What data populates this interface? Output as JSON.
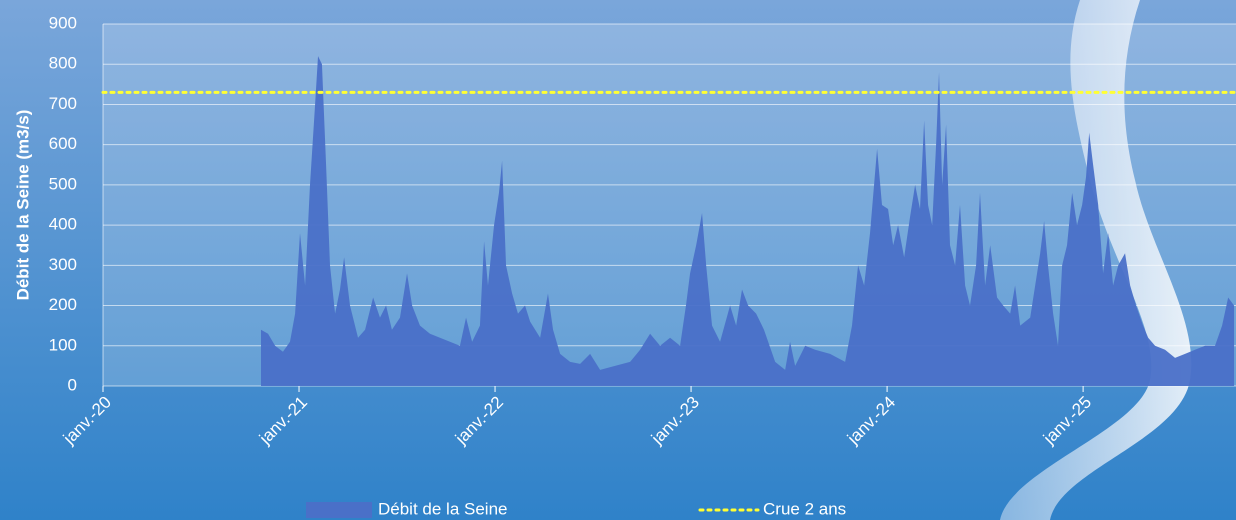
{
  "chart_data": {
    "type": "area",
    "y_label": "Débit de la Seine (m3/s)",
    "xlim": [
      2020,
      2025.78
    ],
    "xticks": [
      {
        "value": 2020,
        "label": "janv.-20"
      },
      {
        "value": 2021,
        "label": "janv.-21"
      },
      {
        "value": 2022,
        "label": "janv.-22"
      },
      {
        "value": 2023,
        "label": "janv.-23"
      },
      {
        "value": 2024,
        "label": "janv.-24"
      },
      {
        "value": 2025,
        "label": "janv.-25"
      }
    ],
    "ylim": [
      0,
      900
    ],
    "yticks": [
      0,
      100,
      200,
      300,
      400,
      500,
      600,
      700,
      800,
      900
    ],
    "grid": true,
    "series": [
      {
        "name": "Débit de la Seine",
        "color": "#4a70c8",
        "style": "area",
        "x": [
          2020.806,
          2020.842,
          2020.878,
          2020.918,
          2020.954,
          2020.98,
          2021.005,
          2021.031,
          2021.056,
          2021.082,
          2021.097,
          2021.117,
          2021.138,
          2021.158,
          2021.184,
          2021.209,
          2021.23,
          2021.26,
          2021.301,
          2021.337,
          2021.378,
          2021.413,
          2021.444,
          2021.474,
          2021.515,
          2021.551,
          2021.577,
          2021.617,
          2021.668,
          2021.719,
          2021.77,
          2021.821,
          2021.852,
          2021.883,
          2021.923,
          2021.944,
          2021.964,
          2021.995,
          2022.02,
          2022.036,
          2022.056,
          2022.087,
          2022.117,
          2022.153,
          2022.179,
          2022.23,
          2022.27,
          2022.296,
          2022.332,
          2022.383,
          2022.434,
          2022.485,
          2022.536,
          2022.612,
          2022.689,
          2022.74,
          2022.791,
          2022.842,
          2022.893,
          2022.944,
          2022.974,
          2022.995,
          2023.026,
          2023.056,
          2023.077,
          2023.107,
          2023.148,
          2023.199,
          2023.23,
          2023.26,
          2023.291,
          2023.332,
          2023.372,
          2023.429,
          2023.48,
          2023.505,
          2023.531,
          2023.582,
          2023.633,
          2023.709,
          2023.786,
          2023.821,
          2023.852,
          2023.883,
          2023.913,
          2023.949,
          2023.974,
          2024.005,
          2024.031,
          2024.056,
          2024.087,
          2024.117,
          2024.143,
          2024.168,
          2024.189,
          2024.209,
          2024.23,
          2024.25,
          2024.265,
          2024.281,
          2024.301,
          2024.321,
          2024.347,
          2024.372,
          2024.398,
          2024.423,
          2024.454,
          2024.474,
          2024.5,
          2024.526,
          2024.561,
          2024.592,
          2024.628,
          2024.653,
          2024.679,
          2024.73,
          2024.781,
          2024.801,
          2024.821,
          2024.847,
          2024.872,
          2024.893,
          2024.918,
          2024.944,
          2024.969,
          2024.995,
          2025.015,
          2025.031,
          2025.051,
          2025.077,
          2025.102,
          2025.128,
          2025.153,
          2025.179,
          2025.214,
          2025.24,
          2025.27,
          2025.306,
          2025.332,
          2025.367,
          2025.418,
          2025.469,
          2025.52,
          2025.571,
          2025.622,
          2025.673,
          2025.709,
          2025.74,
          2025.77
        ],
        "values": [
          140,
          130,
          100,
          85,
          110,
          180,
          380,
          250,
          500,
          700,
          820,
          800,
          550,
          300,
          180,
          240,
          320,
          200,
          120,
          140,
          220,
          170,
          200,
          140,
          170,
          280,
          200,
          150,
          130,
          120,
          110,
          100,
          170,
          110,
          150,
          360,
          250,
          400,
          480,
          560,
          300,
          230,
          180,
          200,
          160,
          120,
          230,
          140,
          80,
          60,
          55,
          80,
          40,
          50,
          60,
          90,
          130,
          100,
          120,
          100,
          200,
          280,
          350,
          430,
          300,
          150,
          110,
          200,
          150,
          240,
          200,
          180,
          140,
          60,
          40,
          110,
          50,
          100,
          90,
          80,
          60,
          150,
          300,
          250,
          380,
          590,
          450,
          440,
          350,
          400,
          320,
          420,
          500,
          440,
          660,
          450,
          400,
          600,
          780,
          500,
          650,
          350,
          300,
          450,
          250,
          200,
          300,
          480,
          250,
          350,
          220,
          200,
          180,
          250,
          150,
          170,
          330,
          410,
          300,
          180,
          100,
          300,
          350,
          480,
          400,
          450,
          520,
          630,
          550,
          450,
          280,
          380,
          250,
          300,
          330,
          250,
          200,
          150,
          120,
          100,
          90,
          70,
          80,
          90,
          100,
          100,
          150,
          220,
          200
        ]
      },
      {
        "name": "Crue 2 ans",
        "color": "#ffff33",
        "style": "dotted",
        "x": [
          2020,
          2025.78
        ],
        "values": [
          730,
          730
        ]
      }
    ]
  }
}
